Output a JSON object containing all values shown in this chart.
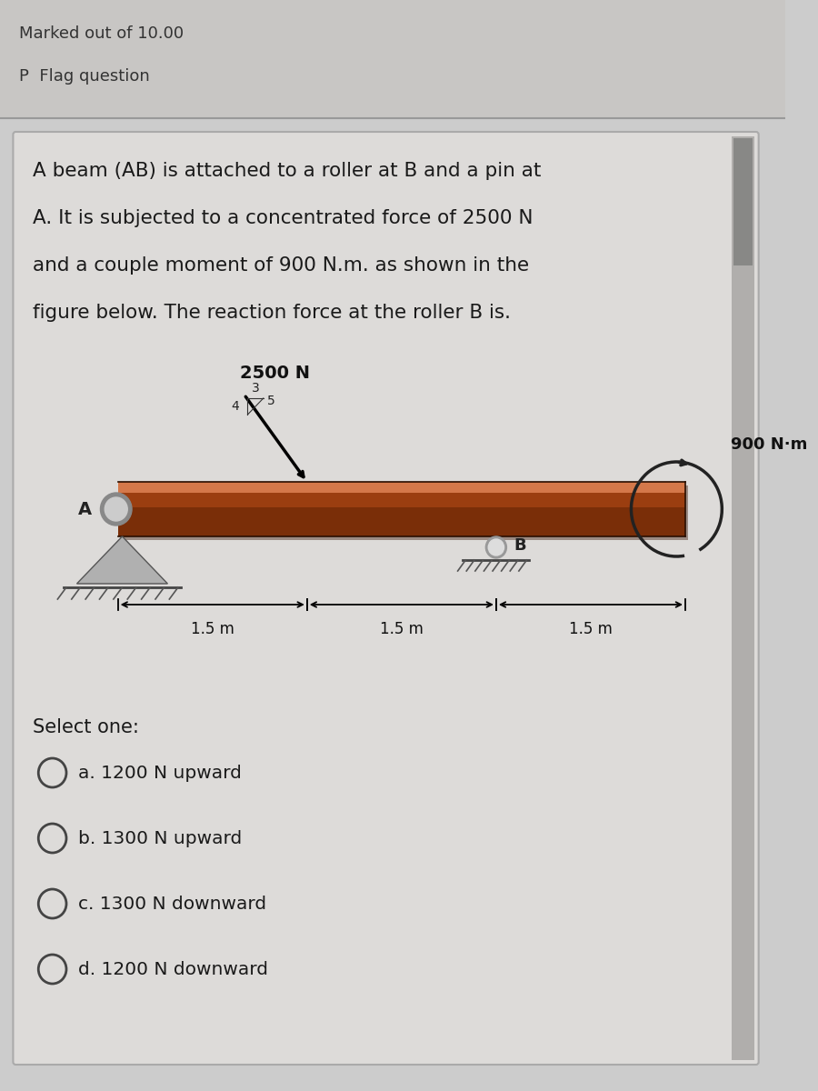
{
  "bg_color": "#cccccc",
  "header_bg": "#c8c6c4",
  "question_bg": "#e0dede",
  "marked_text": "Marked out of 10.00",
  "flag_text": "P  Flag question",
  "question_text_line1": "A beam (AB) is attached to a roller at B and a pin at",
  "question_text_line2": "A. It is subjected to a concentrated force of 2500 N",
  "question_text_line3": "and a couple moment of 900 N.m. as shown in the",
  "question_text_line4": "figure below. The reaction force at the roller B is.",
  "select_one": "Select one:",
  "options": [
    "a. 1200 N upward",
    "b. 1300 N upward",
    "c. 1300 N downward",
    "d. 1200 N downward"
  ],
  "force_label": "2500 N",
  "moment_label": "900 N·m",
  "dim_labels": [
    "1.5 m",
    "1.5 m",
    "1.5 m"
  ],
  "beam_color_dark": "#7a2e08",
  "beam_color_mid": "#9b3e10",
  "beam_color_light": "#c26030",
  "beam_color_highlight": "#d4784a"
}
